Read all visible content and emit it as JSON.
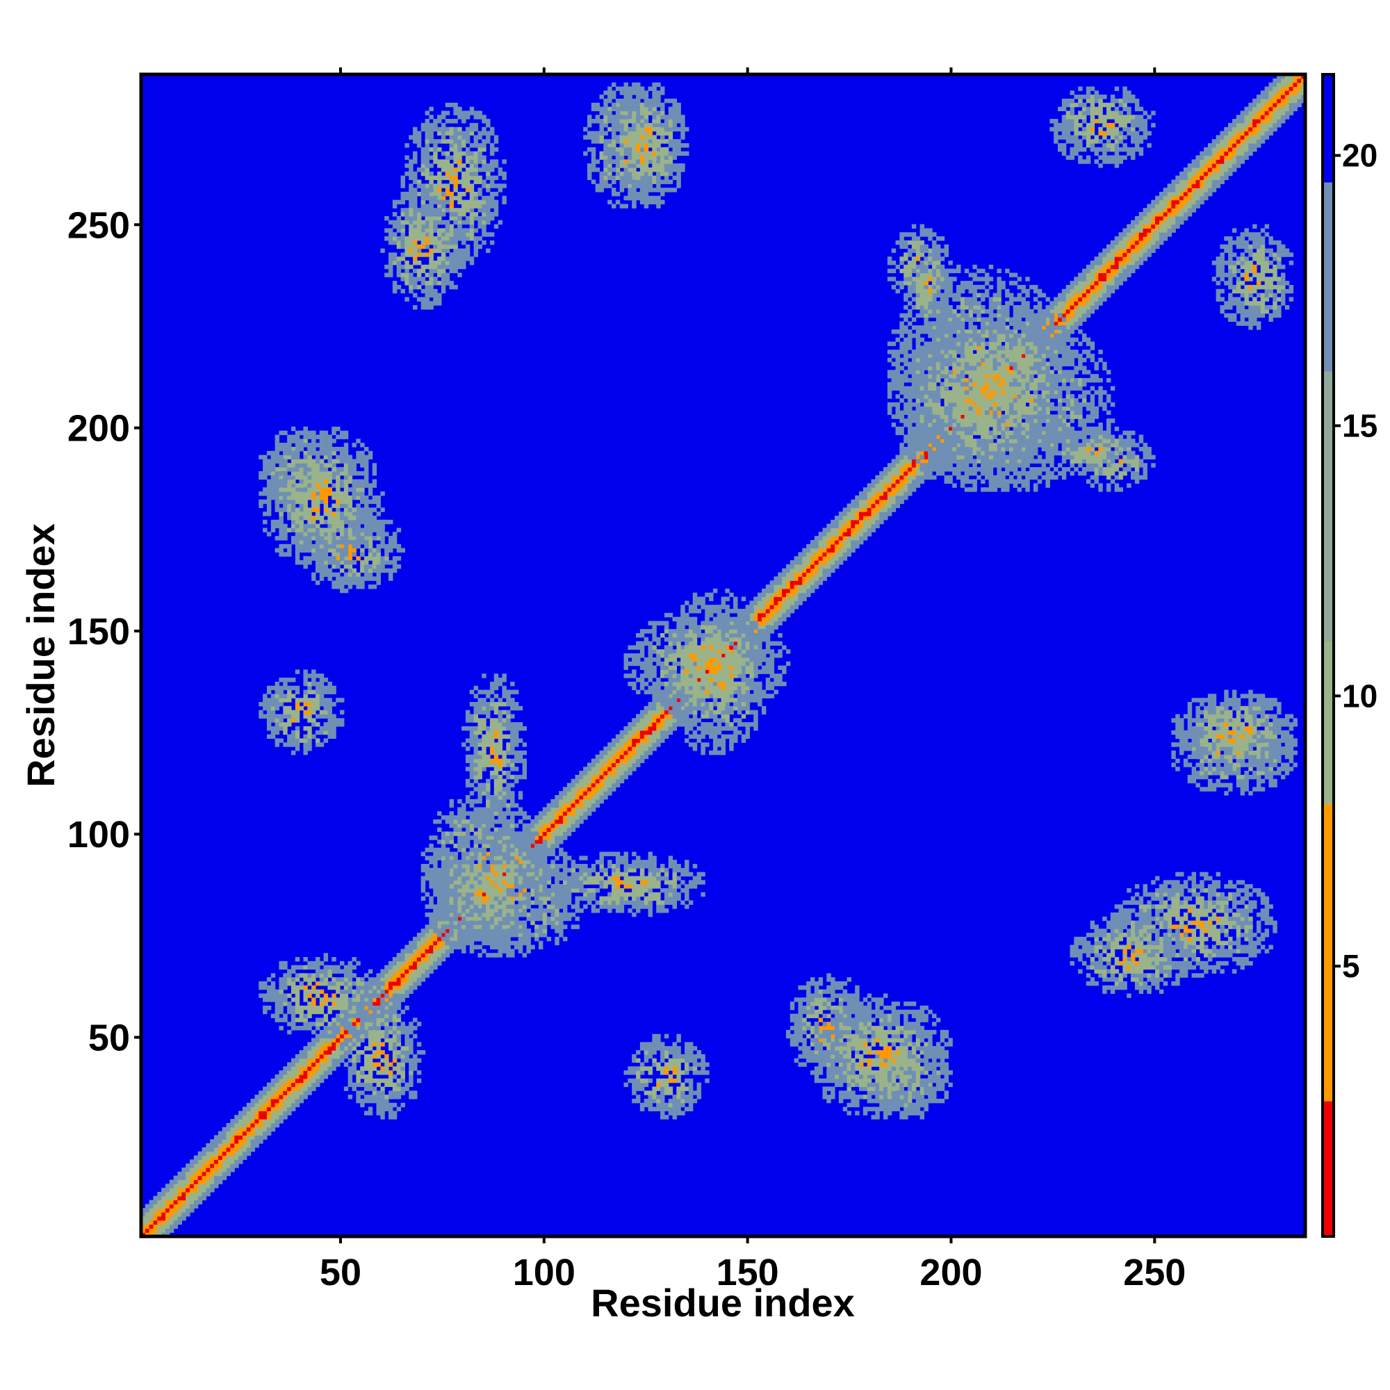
{
  "chart_data": {
    "type": "heatmap",
    "title": "",
    "xlabel": "Residue index",
    "ylabel": "Residue index",
    "n_residues": 287,
    "xlim": [
      1,
      287
    ],
    "ylim": [
      1,
      287
    ],
    "x_ticks": [
      50,
      100,
      150,
      200,
      250
    ],
    "y_ticks": [
      50,
      100,
      150,
      200,
      250
    ],
    "colorbar": {
      "ticks": [
        5,
        10,
        15,
        20
      ],
      "range": [
        0,
        21.5
      ],
      "colors": {
        "near": "#ee0000",
        "close": "#ff9900",
        "mid": "#9ab38a",
        "far": "#6f8fb5",
        "background": "#0000ee"
      }
    },
    "description_matrix": "symmetric residue-residue distance map; strong main diagonal plus off-diagonal contact clusters",
    "contact_clusters": [
      {
        "x": [
          65,
          90
        ],
        "y": [
          240,
          280
        ]
      },
      {
        "x": [
          110,
          130
        ],
        "y": [
          255,
          285
        ]
      },
      {
        "x": [
          30,
          50
        ],
        "y": [
          180,
          200
        ]
      },
      {
        "x": [
          40,
          65
        ],
        "y": [
          160,
          180
        ]
      },
      {
        "x": [
          70,
          100
        ],
        "y": [
          70,
          110
        ]
      },
      {
        "x": [
          100,
          140
        ],
        "y": [
          80,
          95
        ]
      },
      {
        "x": [
          130,
          155
        ],
        "y": [
          120,
          160
        ]
      },
      {
        "x": [
          185,
          230
        ],
        "y": [
          185,
          240
        ]
      },
      {
        "x": [
          230,
          250
        ],
        "y": [
          185,
          200
        ]
      },
      {
        "x": [
          190,
          200
        ],
        "y": [
          225,
          245
        ]
      },
      {
        "x": [
          30,
          50
        ],
        "y": [
          120,
          140
        ]
      },
      {
        "x": [
          30,
          60
        ],
        "y": [
          50,
          70
        ]
      },
      {
        "x": [
          165,
          200
        ],
        "y": [
          30,
          60
        ]
      },
      {
        "x": [
          230,
          260
        ],
        "y": [
          60,
          80
        ]
      },
      {
        "x": [
          255,
          285
        ],
        "y": [
          115,
          135
        ]
      },
      {
        "x": [
          265,
          285
        ],
        "y": [
          225,
          250
        ]
      }
    ]
  }
}
